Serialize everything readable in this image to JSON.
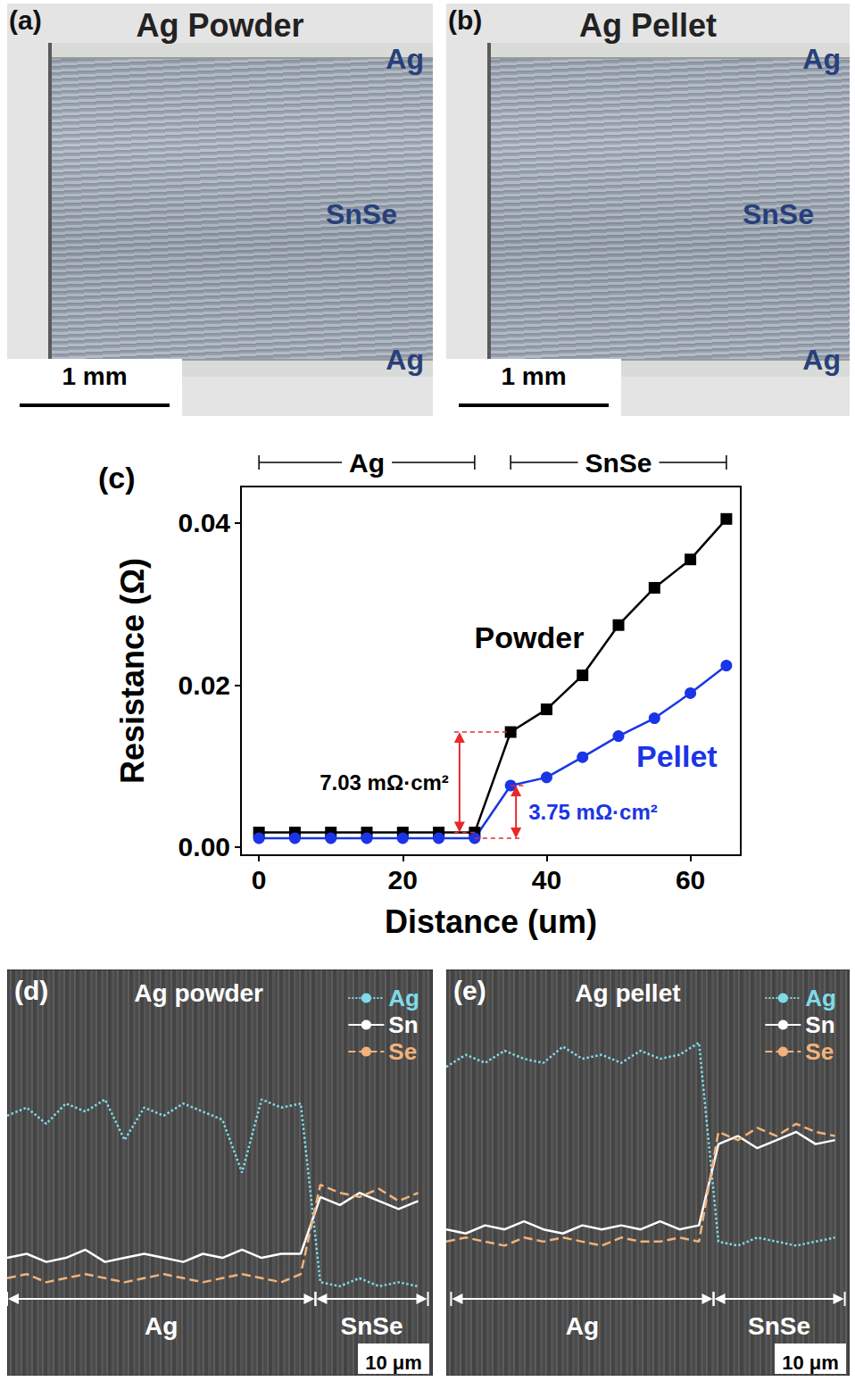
{
  "photos": [
    {
      "letter": "(a)",
      "title": "Ag Powder",
      "layers": [
        "Ag",
        "SnSe",
        "Ag"
      ],
      "scale_bar": "1 mm"
    },
    {
      "letter": "(b)",
      "title": "Ag Pellet",
      "layers": [
        "Ag",
        "SnSe",
        "Ag"
      ],
      "scale_bar": "1 mm"
    }
  ],
  "chart_data": [
    {
      "letter": "(c)",
      "type": "line",
      "x_label": "Distance (um)",
      "y_label": "Resistance (Ω)",
      "x": [
        0,
        5,
        10,
        15,
        20,
        25,
        30,
        35,
        40,
        45,
        50,
        55,
        60,
        65
      ],
      "xlim": [
        -2.5,
        67
      ],
      "xticks": [
        0,
        20,
        40,
        60
      ],
      "ylim": [
        -0.001,
        0.0445
      ],
      "yticks": [
        {
          "value": 0,
          "label": "0.00"
        },
        {
          "value": 0.02,
          "label": "0.02"
        },
        {
          "value": 0.04,
          "label": "0.04"
        }
      ],
      "grid": false,
      "regions": [
        {
          "label": "Ag",
          "from": 0,
          "to": 30
        },
        {
          "label": "SnSe",
          "from": 35,
          "to": 65
        }
      ],
      "series": [
        {
          "name": "Powder",
          "color": "#000000",
          "marker": "square",
          "values": [
            0.0018,
            0.0018,
            0.0018,
            0.0018,
            0.0018,
            0.0018,
            0.0018,
            0.0142,
            0.017,
            0.0212,
            0.0274,
            0.032,
            0.0355,
            0.0405
          ]
        },
        {
          "name": "Pellet",
          "color": "#1a35e6",
          "marker": "circle",
          "values": [
            0.0011,
            0.0011,
            0.0011,
            0.0011,
            0.0011,
            0.0011,
            0.0011,
            0.0076,
            0.0086,
            0.0111,
            0.0137,
            0.0159,
            0.019,
            0.0224
          ]
        }
      ],
      "annotations": [
        {
          "text": "7.03 mΩ·cm²",
          "series": "Powder"
        },
        {
          "text": "3.75 mΩ·cm²",
          "series": "Pellet"
        }
      ]
    },
    {
      "letter": "(d)",
      "type": "line",
      "title": "Ag powder",
      "tick_labels": false,
      "legend": "top-right",
      "x": [
        0,
        4,
        8,
        12,
        16,
        20,
        24,
        28,
        32,
        36,
        40,
        44,
        48,
        52,
        56,
        60,
        64,
        68,
        72,
        76,
        80,
        84
      ],
      "xlim": [
        0,
        87
      ],
      "ylim": [
        0,
        100
      ],
      "series": [
        {
          "name": "Ag",
          "color": "#7fdbe8",
          "line_style": "dotted",
          "values": [
            64,
            66,
            62,
            67,
            65,
            68,
            58,
            66,
            64,
            67,
            65,
            63,
            50,
            68,
            66,
            67,
            23,
            22,
            24,
            22,
            23,
            22
          ]
        },
        {
          "name": "Sn",
          "color": "#ffffff",
          "line_style": "solid",
          "values": [
            29,
            30,
            28,
            29,
            31,
            28,
            29,
            30,
            29,
            28,
            30,
            29,
            31,
            29,
            30,
            30,
            44,
            42,
            45,
            43,
            41,
            43
          ]
        },
        {
          "name": "Se",
          "color": "#f2b27a",
          "line_style": "dashed",
          "values": [
            24,
            25,
            23,
            24,
            25,
            24,
            23,
            24,
            25,
            24,
            23,
            24,
            25,
            24,
            23,
            25,
            47,
            45,
            44,
            46,
            43,
            45
          ]
        }
      ],
      "regions": [
        {
          "label": "Ag",
          "from": 0,
          "to": 63
        },
        {
          "label": "SnSe",
          "from": 63,
          "to": 86
        }
      ],
      "scale_bar": {
        "length": 10,
        "label": "10 μm"
      }
    },
    {
      "letter": "(e)",
      "type": "line",
      "title": "Ag pellet",
      "tick_labels": false,
      "legend": "top-right",
      "x": [
        0,
        4,
        8,
        12,
        16,
        20,
        24,
        28,
        32,
        36,
        40,
        44,
        48,
        52,
        56,
        60,
        64,
        68,
        72,
        76,
        80
      ],
      "xlim": [
        0,
        83
      ],
      "ylim": [
        0,
        100
      ],
      "series": [
        {
          "name": "Ag",
          "color": "#7fdbe8",
          "line_style": "dotted",
          "values": [
            76,
            79,
            77,
            80,
            78,
            77,
            81,
            78,
            79,
            77,
            80,
            78,
            79,
            82,
            33,
            32,
            34,
            33,
            32,
            33,
            34
          ]
        },
        {
          "name": "Sn",
          "color": "#ffffff",
          "line_style": "solid",
          "values": [
            36,
            35,
            37,
            36,
            38,
            36,
            35,
            37,
            36,
            37,
            36,
            38,
            36,
            37,
            57,
            59,
            56,
            58,
            60,
            57,
            58
          ]
        },
        {
          "name": "Se",
          "color": "#f2b27a",
          "line_style": "dashed",
          "values": [
            33,
            34,
            33,
            32,
            34,
            33,
            34,
            33,
            32,
            34,
            33,
            33,
            34,
            33,
            60,
            58,
            61,
            59,
            62,
            60,
            59
          ]
        }
      ],
      "regions": [
        {
          "label": "Ag",
          "from": 1,
          "to": 55
        },
        {
          "label": "SnSe",
          "from": 55,
          "to": 82
        }
      ],
      "scale_bar": {
        "length": 10,
        "label": "10 μm"
      }
    }
  ]
}
